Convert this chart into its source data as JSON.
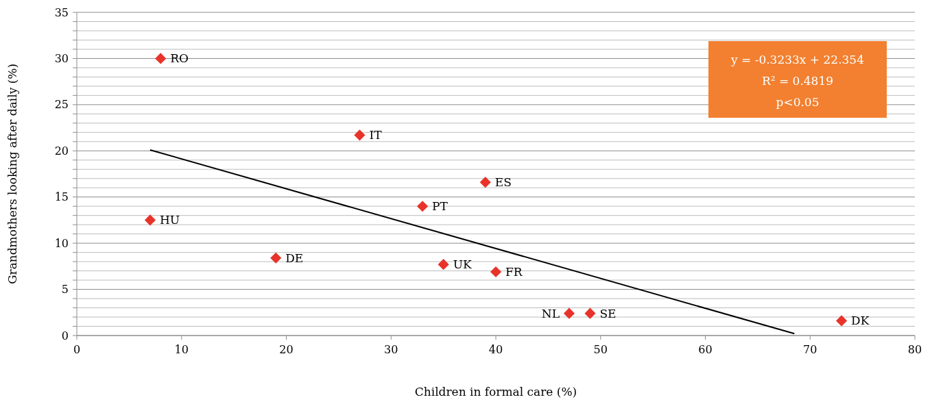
{
  "chart_data": {
    "type": "scatter",
    "xlabel": "Children in formal care (%)",
    "ylabel": "Grandmothers looking after daily (%)",
    "xlim": [
      0,
      80
    ],
    "xticks": [
      0,
      10,
      20,
      30,
      40,
      50,
      60,
      70,
      80
    ],
    "ylim": [
      0,
      35
    ],
    "yticks": [
      0,
      {
        "value": 1,
        "label": null
      },
      {
        "value": 2,
        "label": null
      },
      {
        "value": 3,
        "label": null
      },
      {
        "value": 4,
        "label": null
      },
      5,
      {
        "value": 6,
        "label": null
      },
      {
        "value": 7,
        "label": null
      },
      {
        "value": 8,
        "label": null
      },
      {
        "value": 9,
        "label": null
      },
      10,
      {
        "value": 11,
        "label": null
      },
      {
        "value": 12,
        "label": null
      },
      {
        "value": 13,
        "label": null
      },
      {
        "value": 14,
        "label": null
      },
      15,
      {
        "value": 16,
        "label": null
      },
      {
        "value": 17,
        "label": null
      },
      {
        "value": 18,
        "label": null
      },
      {
        "value": 19,
        "label": null
      },
      20,
      {
        "value": 21,
        "label": null
      },
      {
        "value": 22,
        "label": null
      },
      {
        "value": 23,
        "label": null
      },
      {
        "value": 24,
        "label": null
      },
      25,
      {
        "value": 26,
        "label": null
      },
      {
        "value": 27,
        "label": null
      },
      {
        "value": 28,
        "label": null
      },
      {
        "value": 29,
        "label": null
      },
      30,
      {
        "value": 31,
        "label": null
      },
      {
        "value": 32,
        "label": null
      },
      {
        "value": 33,
        "label": null
      },
      {
        "value": 34,
        "label": null
      },
      35
    ],
    "grid": "y",
    "series": [
      {
        "marker": "diamond",
        "color": "#e8332a",
        "x": [
          8,
          27,
          39,
          33,
          7,
          19,
          35,
          40,
          47,
          49,
          73
        ],
        "values": [
          30,
          21.7,
          16.6,
          14,
          12.5,
          8.4,
          7.7,
          6.9,
          2.4,
          2.4,
          1.6
        ]
      },
      {
        "type": "line",
        "marker": "none",
        "line_style": "solid",
        "color": "#000000",
        "x": [
          7,
          68.5
        ],
        "values": [
          20.1,
          0.2
        ]
      }
    ],
    "annotations": [
      {
        "text": "RO",
        "x": 8,
        "y": 30
      },
      {
        "text": "IT",
        "x": 27,
        "y": 21.7
      },
      {
        "text": "ES",
        "x": 39,
        "y": 16.6
      },
      {
        "text": "PT",
        "x": 33,
        "y": 14
      },
      {
        "text": "HU",
        "x": 7,
        "y": 12.5
      },
      {
        "text": "DE",
        "x": 19,
        "y": 8.4
      },
      {
        "text": "UK",
        "x": 35,
        "y": 7.7
      },
      {
        "text": "FR",
        "x": 40,
        "y": 6.9
      },
      {
        "text": "NL",
        "x": 47,
        "y": 2.4
      },
      {
        "text": "SE",
        "x": 49,
        "y": 2.4
      },
      {
        "text": "DK",
        "x": 73,
        "y": 1.6
      },
      "y = -0.3233x + 22.354",
      "R² = 0.4819",
      "p<0.05"
    ]
  }
}
